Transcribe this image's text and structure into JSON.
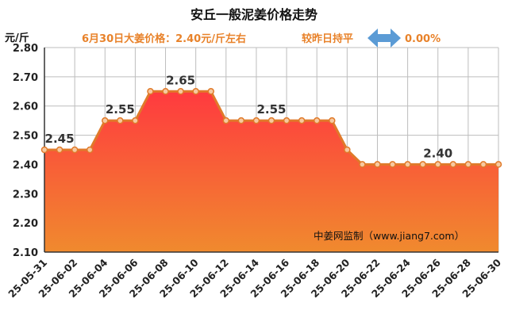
{
  "header": {
    "title": "安丘一般泥姜价格走势",
    "price_info": "6月30日大姜价格：2.40元/斤左右",
    "compare_text": "较昨日持平",
    "change_pct": "0.00%"
  },
  "watermark": "中姜网监制（www.jiang7.com）",
  "colors": {
    "line": "#e07a2a",
    "fill_top": "#ff3a3f",
    "fill_bottom": "#f08a2e",
    "accent_text": "#e8822a",
    "arrow": "#5b9bd5"
  },
  "icons": {
    "compare_icon": "double-arrow-icon"
  },
  "chart_data": {
    "type": "area",
    "title": "安丘一般泥姜价格走势",
    "ylabel": "元/斤",
    "ylim": [
      2.1,
      2.8
    ],
    "yticks": [
      "2.10",
      "2.20",
      "2.30",
      "2.40",
      "2.50",
      "2.60",
      "2.70",
      "2.80"
    ],
    "grid": true,
    "x": [
      "25-05-31",
      "25-06-01",
      "25-06-02",
      "25-06-03",
      "25-06-04",
      "25-06-05",
      "25-06-06",
      "25-06-07",
      "25-06-08",
      "25-06-09",
      "25-06-10",
      "25-06-11",
      "25-06-12",
      "25-06-13",
      "25-06-14",
      "25-06-15",
      "25-06-16",
      "25-06-17",
      "25-06-18",
      "25-06-19",
      "25-06-20",
      "25-06-21",
      "25-06-22",
      "25-06-23",
      "25-06-24",
      "25-06-25",
      "25-06-26",
      "25-06-27",
      "25-06-28",
      "25-06-29",
      "25-06-30"
    ],
    "xtick_labels": [
      "25-05-31",
      "25-06-02",
      "25-06-04",
      "25-06-06",
      "25-06-08",
      "25-06-10",
      "25-06-12",
      "25-06-14",
      "25-06-16",
      "25-06-18",
      "25-06-20",
      "25-06-22",
      "25-06-24",
      "25-06-26",
      "25-06-28",
      "25-06-30"
    ],
    "values": [
      2.45,
      2.45,
      2.45,
      2.45,
      2.55,
      2.55,
      2.55,
      2.65,
      2.65,
      2.65,
      2.65,
      2.65,
      2.55,
      2.55,
      2.55,
      2.55,
      2.55,
      2.55,
      2.55,
      2.55,
      2.45,
      2.4,
      2.4,
      2.4,
      2.4,
      2.4,
      2.4,
      2.4,
      2.4,
      2.4,
      2.4
    ],
    "data_labels": [
      {
        "date": "25-06-01",
        "text": "2.45"
      },
      {
        "date": "25-06-05",
        "text": "2.55"
      },
      {
        "date": "25-06-09",
        "text": "2.65"
      },
      {
        "date": "25-06-15",
        "text": "2.55"
      },
      {
        "date": "25-06-26",
        "text": "2.40"
      }
    ]
  }
}
